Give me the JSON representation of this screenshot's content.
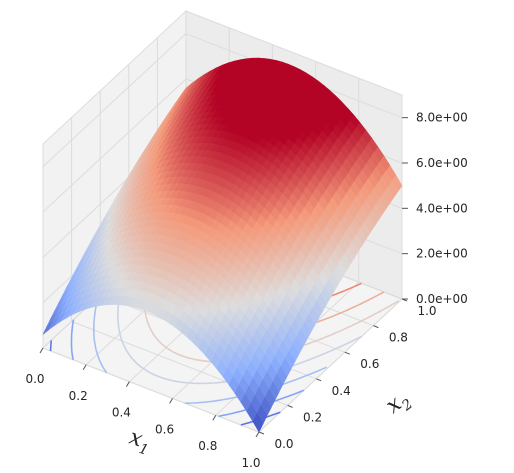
{
  "chart_data": {
    "type": "surface3d",
    "title": "",
    "x1_label": "x",
    "x1_subscript": "1",
    "x2_label": "x",
    "x2_subscript": "2",
    "zlabel": "",
    "x1_ticks": [
      "0.0",
      "0.2",
      "0.4",
      "0.6",
      "0.8",
      "1.0"
    ],
    "x2_ticks": [
      "0.0",
      "0.2",
      "0.4",
      "0.6",
      "0.8",
      "1.0"
    ],
    "z_ticks": [
      "0.0e+00",
      "2.0e+00",
      "4.0e+00",
      "6.0e+00",
      "8.0e+00"
    ],
    "x1_range": [
      0,
      1
    ],
    "x2_range": [
      0,
      1
    ],
    "z_range": [
      0,
      9
    ],
    "colormap": "coolwarm",
    "grid": true,
    "colors": {
      "low": "#3b4cc0",
      "mid": "#dddddd",
      "high": "#b40426",
      "pane": "#f2f2f2",
      "grid": "#dcdcdc"
    },
    "surface_corners": [
      {
        "x1": 0.0,
        "x2": 0.0,
        "z": 0.6
      },
      {
        "x1": 0.0,
        "x2": 1.0,
        "z": 5.6
      },
      {
        "x1": 1.0,
        "x2": 0.0,
        "z": 0.0
      },
      {
        "x1": 1.0,
        "x2": 1.0,
        "z": 5.0
      },
      {
        "x1": 0.5,
        "x2": 0.5,
        "z": 7.0
      }
    ],
    "contour_levels": [
      1,
      2,
      3,
      4,
      5,
      6,
      7
    ]
  }
}
